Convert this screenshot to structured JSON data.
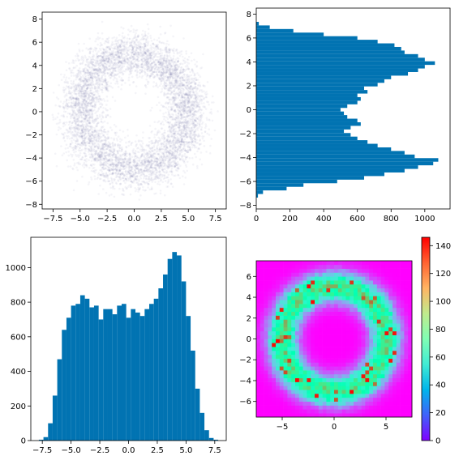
{
  "chart_data": [
    {
      "id": "scatter",
      "type": "scatter",
      "description_of_points": "ring of points centered at origin, radius about 5, spread about 1",
      "ring": {
        "center": [
          0,
          0
        ],
        "radius": 5,
        "spread": 1.0,
        "n_points": 6000
      },
      "xlim": [
        -8.5,
        8.5
      ],
      "ylim": [
        -8.4,
        8.6
      ],
      "xticks": [
        -7.5,
        -5.0,
        -2.5,
        0.0,
        2.5,
        5.0,
        7.5
      ],
      "xtick_labels": [
        "−7.5",
        "−5.0",
        "−2.5",
        "0.0",
        "2.5",
        "5.0",
        "7.5"
      ],
      "yticks": [
        -8,
        -6,
        -4,
        -2,
        0,
        2,
        4,
        6,
        8
      ],
      "ytick_labels": [
        "−8",
        "−6",
        "−4",
        "−2",
        "0",
        "2",
        "4",
        "6",
        "8"
      ],
      "point_color": "#1f2a7a",
      "title": "",
      "xlabel": "",
      "ylabel": ""
    },
    {
      "id": "hist-y",
      "type": "bar",
      "orientation": "horizontal",
      "bin_width": 0.15,
      "y": [
        -7.2,
        -6.9,
        -6.6,
        -6.3,
        -6.0,
        -5.7,
        -5.4,
        -5.1,
        -4.8,
        -4.5,
        -4.2,
        -3.9,
        -3.6,
        -3.3,
        -3.0,
        -2.7,
        -2.4,
        -2.1,
        -1.8,
        -1.5,
        -1.2,
        -0.9,
        -0.6,
        -0.3,
        0.0,
        0.3,
        0.6,
        0.9,
        1.2,
        1.5,
        1.8,
        2.1,
        2.4,
        2.7,
        3.0,
        3.3,
        3.6,
        3.9,
        4.2,
        4.5,
        4.8,
        5.1,
        5.4,
        5.7,
        6.0,
        6.3,
        6.6,
        6.9,
        7.2
      ],
      "values": [
        10,
        40,
        180,
        280,
        480,
        640,
        760,
        880,
        960,
        1050,
        1080,
        940,
        880,
        800,
        720,
        660,
        600,
        560,
        520,
        560,
        620,
        600,
        540,
        520,
        500,
        540,
        600,
        620,
        600,
        660,
        640,
        720,
        760,
        800,
        900,
        960,
        1000,
        1060,
        1000,
        960,
        880,
        860,
        820,
        720,
        600,
        400,
        220,
        80,
        15
      ],
      "xlim": [
        0,
        1150
      ],
      "ylim": [
        -8.3,
        8.5
      ],
      "xticks": [
        0,
        200,
        400,
        600,
        800,
        1000
      ],
      "xtick_labels": [
        "0",
        "200",
        "400",
        "600",
        "800",
        "1000"
      ],
      "yticks": [
        -8,
        -6,
        -4,
        -2,
        0,
        2,
        4,
        6,
        8
      ],
      "ytick_labels": [
        "−8",
        "−6",
        "−4",
        "−2",
        "0",
        "2",
        "4",
        "6",
        "8"
      ],
      "bar_color": "#0173b2",
      "title": "",
      "xlabel": "",
      "ylabel": ""
    },
    {
      "id": "hist-x",
      "type": "bar",
      "orientation": "vertical",
      "bin_width": 0.16,
      "x": [
        -7.6,
        -7.2,
        -6.8,
        -6.4,
        -6.0,
        -5.6,
        -5.2,
        -4.8,
        -4.4,
        -4.0,
        -3.6,
        -3.2,
        -2.8,
        -2.4,
        -2.0,
        -1.6,
        -1.2,
        -0.8,
        -0.4,
        0.0,
        0.4,
        0.8,
        1.2,
        1.6,
        2.0,
        2.4,
        2.8,
        3.2,
        3.6,
        4.0,
        4.4,
        4.8,
        5.2,
        5.6,
        6.0,
        6.4,
        6.8,
        7.2,
        7.6
      ],
      "values": [
        5,
        20,
        100,
        260,
        470,
        640,
        710,
        780,
        790,
        840,
        820,
        770,
        780,
        700,
        760,
        760,
        730,
        780,
        790,
        710,
        760,
        740,
        720,
        760,
        790,
        820,
        880,
        960,
        1050,
        1090,
        1070,
        920,
        720,
        520,
        300,
        160,
        60,
        15,
        5
      ],
      "xlim": [
        -8.5,
        8.5
      ],
      "ylim": [
        0,
        1175
      ],
      "xticks": [
        -7.5,
        -5.0,
        -2.5,
        0.0,
        2.5,
        5.0,
        7.5
      ],
      "xtick_labels": [
        "−7.5",
        "−5.0",
        "−2.5",
        "0.0",
        "2.5",
        "5.0",
        "7.5"
      ],
      "yticks": [
        0,
        200,
        400,
        600,
        800,
        1000
      ],
      "ytick_labels": [
        "0",
        "200",
        "400",
        "600",
        "800",
        "1000"
      ],
      "bar_color": "#0173b2",
      "title": "",
      "xlabel": "",
      "ylabel": ""
    },
    {
      "id": "hist2d",
      "type": "heatmap",
      "description": "2D histogram of the ring, 40x40 bins, rainbow colormap",
      "bins": 40,
      "ring": {
        "center": [
          0,
          0
        ],
        "radius": 5,
        "spread": 1.0,
        "peak_count": 145
      },
      "xlim": [
        -7.5,
        7.5
      ],
      "ylim": [
        -7.5,
        7.5
      ],
      "xticks": [
        -5,
        0,
        5
      ],
      "xtick_labels": [
        "−5",
        "0",
        "5"
      ],
      "yticks": [
        -6,
        -4,
        -2,
        0,
        2,
        4,
        6
      ],
      "ytick_labels": [
        "−6",
        "−4",
        "−2",
        "0",
        "2",
        "4",
        "6"
      ],
      "colorbar": {
        "min": 0,
        "max": 146,
        "ticks": [
          0,
          20,
          40,
          60,
          80,
          100,
          120,
          140
        ],
        "tick_labels": [
          "0",
          "20",
          "40",
          "60",
          "80",
          "100",
          "120",
          "140"
        ],
        "colormap": "rainbow"
      },
      "title": "",
      "xlabel": "",
      "ylabel": ""
    }
  ]
}
